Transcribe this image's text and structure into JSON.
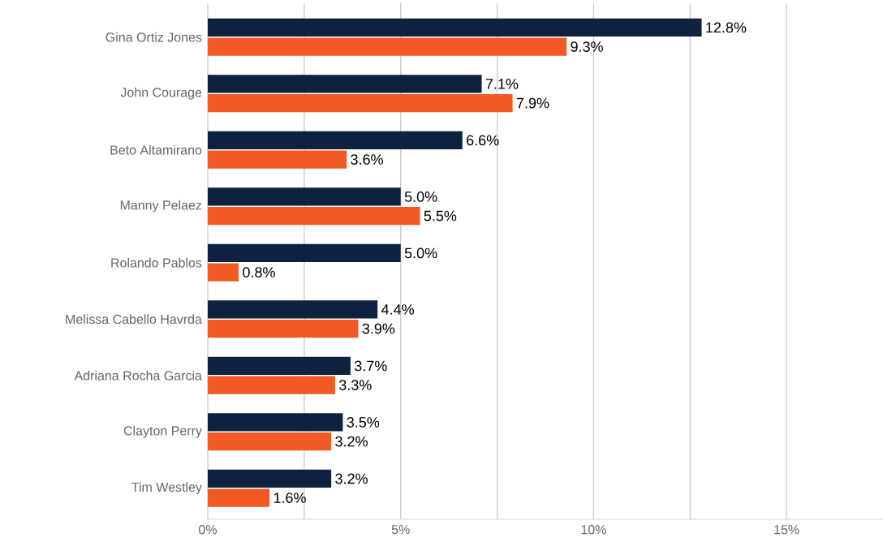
{
  "chart_data": {
    "type": "bar",
    "orientation": "horizontal",
    "categories": [
      "Gina Ortiz Jones",
      "John Courage",
      "Beto Altamirano",
      "Manny Pelaez",
      "Rolando Pablos",
      "Melissa Cabello Havrda",
      "Adriana Rocha Garcia",
      "Clayton Perry",
      "Tim Westley"
    ],
    "series": [
      {
        "color": "#0e2240",
        "values": [
          12.8,
          7.1,
          6.6,
          5.0,
          5.0,
          4.4,
          3.7,
          3.5,
          3.2
        ],
        "value_labels": [
          "12.8%",
          "7.1%",
          "6.6%",
          "5.0%",
          "5.0%",
          "4.4%",
          "3.7%",
          "3.5%",
          "3.2%"
        ]
      },
      {
        "color": "#f15a24",
        "values": [
          9.3,
          7.9,
          3.6,
          5.5,
          0.8,
          3.9,
          3.3,
          3.2,
          1.6
        ],
        "value_labels": [
          "9.3%",
          "7.9%",
          "3.6%",
          "5.5%",
          "0.8%",
          "3.9%",
          "3.3%",
          "3.2%",
          "1.6%"
        ]
      }
    ],
    "xlim": [
      0,
      17.5
    ],
    "xticks": [
      {
        "value": 0,
        "label": "0%"
      },
      {
        "value": 2.5,
        "label": null
      },
      {
        "value": 5,
        "label": "5%"
      },
      {
        "value": 7.5,
        "label": null
      },
      {
        "value": 10,
        "label": "10%"
      },
      {
        "value": 12.5,
        "label": null
      },
      {
        "value": 15,
        "label": "15%"
      }
    ],
    "grid": "x"
  }
}
